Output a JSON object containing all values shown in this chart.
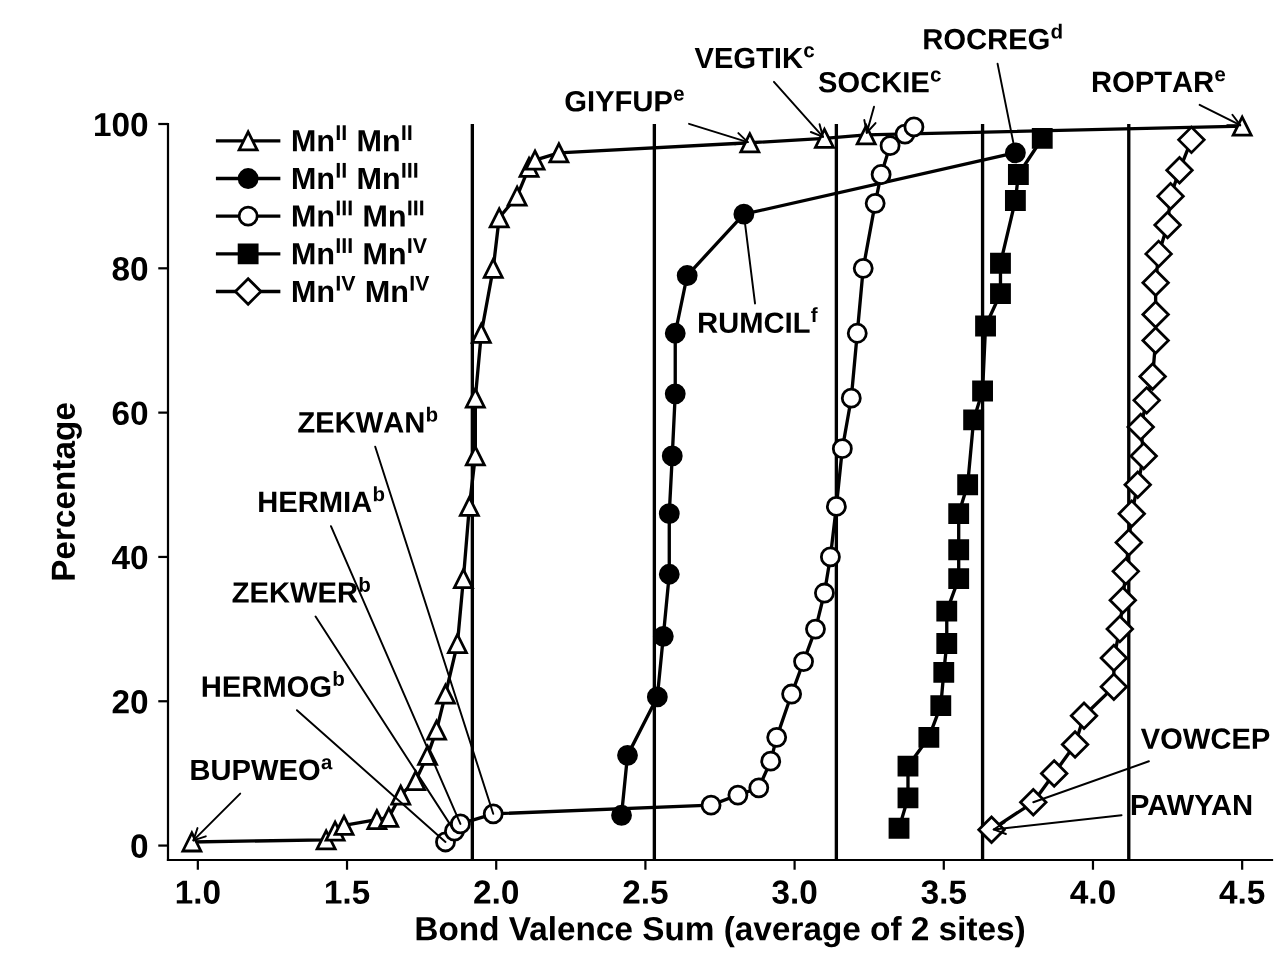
{
  "chart_data": {
    "type": "line",
    "xlabel": "Bond Valence Sum (average of 2 sites)",
    "ylabel": "Percentage",
    "xlim": [
      0.9,
      4.6
    ],
    "xticks": [
      {
        "value": 1.0,
        "label": "1.0"
      },
      1.5,
      {
        "value": 2.0,
        "label": "2.0"
      },
      2.5,
      {
        "value": 3.0,
        "label": "3.0"
      },
      3.5,
      {
        "value": 4.0,
        "label": "4.0"
      },
      4.5
    ],
    "ylim": [
      -2,
      100
    ],
    "yticks": [
      0,
      20,
      40,
      60,
      80,
      100
    ],
    "grid": false,
    "legend": "top left",
    "line_style": "solid",
    "series": [
      {
        "name": "Mn$^{II}$ Mn$^{II}$",
        "color": "#000000",
        "marker": "triangle",
        "x": [
          0.98,
          1.43,
          1.46,
          1.49,
          1.6,
          1.64,
          1.68,
          1.73,
          1.77,
          1.8,
          1.83,
          1.87,
          1.89,
          1.91,
          1.93,
          1.93,
          1.95,
          1.99,
          2.01,
          2.07,
          2.11,
          2.13,
          2.21,
          2.85,
          3.1,
          3.24,
          4.5
        ],
        "values": [
          0.5,
          0.8,
          2,
          2.8,
          3.6,
          3.9,
          7,
          9,
          12.5,
          16,
          21,
          28,
          37,
          47,
          54,
          62,
          71,
          80,
          87,
          90,
          94,
          95,
          96,
          97.4,
          98,
          98.5,
          99.7
        ]
      },
      {
        "name": "Mn$^{II}$ Mn$^{III}$",
        "color": "#000000",
        "marker": "circle",
        "x": [
          2.42,
          2.44,
          2.54,
          2.56,
          2.58,
          2.58,
          2.59,
          2.6,
          2.6,
          2.64,
          2.83,
          3.74
        ],
        "values": [
          4.2,
          12.5,
          20.6,
          29,
          37.6,
          46,
          54,
          62.6,
          71,
          79,
          87.5,
          96
        ]
      },
      {
        "name": "Mn$^{III}$ Mn$^{III}$",
        "color": "#000000",
        "marker": "circle",
        "x": [
          1.83,
          1.86,
          1.88,
          1.99,
          2.72,
          2.81,
          2.88,
          2.92,
          2.94,
          2.99,
          3.03,
          3.07,
          3.1,
          3.12,
          3.14,
          3.16,
          3.19,
          3.21,
          3.23,
          3.27,
          3.29,
          3.32,
          3.37,
          3.4
        ],
        "values": [
          0.5,
          2,
          3,
          4.4,
          5.6,
          7,
          8,
          11.7,
          15,
          21,
          25.5,
          30,
          35,
          40,
          47,
          55,
          62,
          71,
          80,
          89,
          93,
          97,
          98.6,
          99.6
        ]
      },
      {
        "name": "Mn$^{III}$ Mn$^{IV}$",
        "color": "#000000",
        "marker": "square",
        "x": [
          3.35,
          3.38,
          3.38,
          3.45,
          3.49,
          3.5,
          3.51,
          3.51,
          3.55,
          3.55,
          3.55,
          3.58,
          3.6,
          3.63,
          3.64,
          3.69,
          3.69,
          3.74,
          3.75,
          3.83
        ],
        "values": [
          2.4,
          6.6,
          11,
          15,
          19.4,
          24,
          28,
          32.5,
          37,
          41,
          46,
          50,
          59,
          63,
          72,
          76.5,
          80.7,
          89.4,
          93,
          98
        ]
      },
      {
        "name": "Mn$^{IV}$ Mn$^{IV}$",
        "color": "#000000",
        "marker": "diamond",
        "x": [
          3.66,
          3.8,
          3.87,
          3.94,
          3.97,
          4.07,
          4.07,
          4.09,
          4.1,
          4.11,
          4.12,
          4.13,
          4.15,
          4.17,
          4.16,
          4.18,
          4.2,
          4.21,
          4.21,
          4.21,
          4.22,
          4.25,
          4.26,
          4.29,
          4.33
        ],
        "values": [
          2.2,
          6,
          10,
          14,
          18,
          22,
          26,
          30,
          34,
          38,
          42,
          46,
          50,
          54,
          58,
          61.7,
          65,
          70,
          73.6,
          78,
          82,
          86,
          90,
          93.6,
          97.8
        ]
      }
    ],
    "ref_lines": [
      {
        "axis": "x",
        "value": 1.92,
        "color": "#000000"
      },
      {
        "axis": "x",
        "value": 2.53,
        "color": "#000000"
      },
      {
        "axis": "x",
        "value": 3.14,
        "color": "#000000"
      },
      {
        "axis": "x",
        "value": 3.63,
        "color": "#000000"
      },
      {
        "axis": "x",
        "value": 4.12,
        "color": "#000000"
      }
    ],
    "annotations": [
      {
        "text": "BUPWEO$^{a}$",
        "x": 0.98,
        "y": 0.5
      },
      {
        "text": "HERMOG$^{b}$",
        "x": 1.83,
        "y": 0.5
      },
      {
        "text": "ZEKWER$^{b}$",
        "x": 1.86,
        "y": 2
      },
      {
        "text": "HERMIA$^{b}$",
        "x": 1.88,
        "y": 3
      },
      {
        "text": "ZEKWAN$^{b}$",
        "x": 1.99,
        "y": 4.4
      },
      {
        "text": "GIYFUP$^{e}$",
        "x": 2.85,
        "y": 97.4
      },
      {
        "text": "VEGTIK$^{c}$",
        "x": 3.1,
        "y": 98
      },
      {
        "text": "SOCKIE$^{c}$",
        "x": 3.24,
        "y": 98.5
      },
      {
        "text": "ROCREG$^{d}$",
        "x": 3.74,
        "y": 96
      },
      {
        "text": "ROPTAR$^{e}$",
        "x": 4.5,
        "y": 99.7
      },
      {
        "text": "RUMCIL$^{f}$",
        "x": 2.83,
        "y": 87.5
      },
      {
        "text": "VOWCEP",
        "x": 3.8,
        "y": 6
      },
      {
        "text": "PAWYAN",
        "x": 3.66,
        "y": 2.2
      }
    ]
  }
}
